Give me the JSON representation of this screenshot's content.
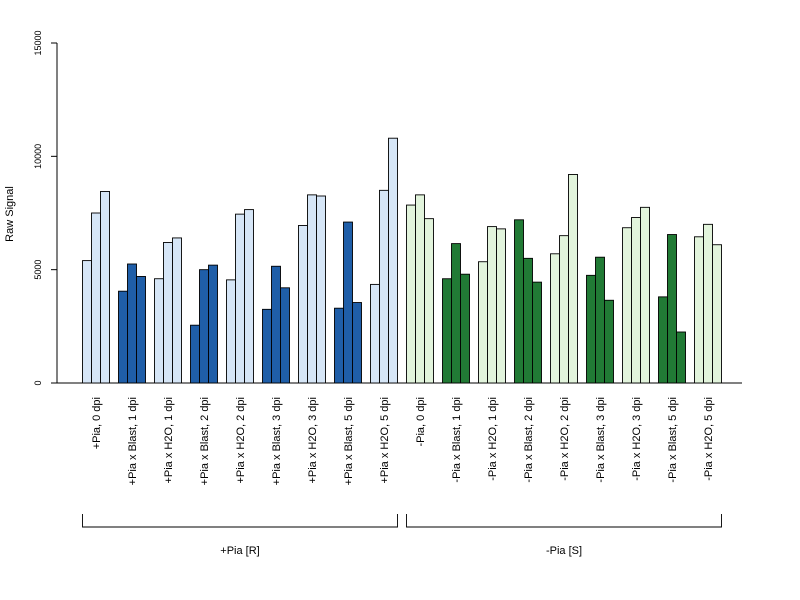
{
  "chart_data": {
    "type": "bar",
    "title": "",
    "xlabel": "",
    "ylabel": "Raw Signal",
    "ylim": [
      0,
      15000
    ],
    "yticks": [
      0,
      5000,
      10000,
      15000
    ],
    "grid": false,
    "replicates_per_group": 3,
    "categories": [
      "+Pia, 0 dpi",
      "+Pia x Blast, 1 dpi",
      "+Pia x H2O, 1 dpi",
      "+Pia x Blast, 2 dpi",
      "+Pia x H2O, 2 dpi",
      "+Pia x Blast, 3 dpi",
      "+Pia x H2O, 3 dpi",
      "+Pia x Blast, 5 dpi",
      "+Pia x H2O, 5 dpi",
      "-Pia, 0 dpi",
      "-Pia x Blast, 1 dpi",
      "-Pia x H2O, 1 dpi",
      "-Pia x Blast, 2 dpi",
      "-Pia x H2O, 2 dpi",
      "-Pia x Blast, 3 dpi",
      "-Pia x H2O, 3 dpi",
      "-Pia x Blast, 5 dpi",
      "-Pia x H2O, 5 dpi"
    ],
    "values": [
      [
        5400,
        7500,
        8450
      ],
      [
        4050,
        5250,
        4700
      ],
      [
        4600,
        6200,
        6400
      ],
      [
        2550,
        5000,
        5200
      ],
      [
        4550,
        7450,
        7650
      ],
      [
        3250,
        5150,
        4200
      ],
      [
        6950,
        8300,
        8250
      ],
      [
        3300,
        7100,
        3550
      ],
      [
        4350,
        8500,
        10800
      ],
      [
        7850,
        8300,
        7250
      ],
      [
        4600,
        6150,
        4800
      ],
      [
        5350,
        6900,
        6800
      ],
      [
        7200,
        5500,
        4450
      ],
      [
        5700,
        6500,
        9200
      ],
      [
        4750,
        5550,
        3650
      ],
      [
        6850,
        7300,
        7750
      ],
      [
        3800,
        6550,
        2250
      ],
      [
        6450,
        7000,
        6100
      ]
    ],
    "group_fill": [
      "#d6e6f7",
      "#1f5ea8",
      "#d6e6f7",
      "#1f5ea8",
      "#d6e6f7",
      "#1f5ea8",
      "#d6e6f7",
      "#1f5ea8",
      "#d6e6f7",
      "#e2f4dc",
      "#217a35",
      "#e2f4dc",
      "#217a35",
      "#e2f4dc",
      "#217a35",
      "#e2f4dc",
      "#217a35",
      "#e2f4dc"
    ],
    "groups": [
      {
        "label": "+Pia [R]",
        "first": 0,
        "last": 8
      },
      {
        "label": "-Pia [S]",
        "first": 9,
        "last": 17
      }
    ]
  }
}
